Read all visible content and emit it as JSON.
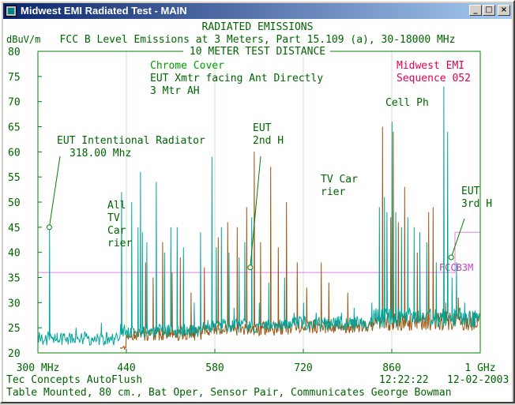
{
  "window": {
    "title": "Midwest EMI Radiated Test - MAIN",
    "buttons": {
      "minimize": "_",
      "maximize": "□",
      "close": "×"
    }
  },
  "header": {
    "line1": "RADIATED EMISSIONS",
    "line2": "FCC B Level Emissions at 3 Meters, Part 15.109 (a), 30-18000 MHz",
    "line3": "10 METER TEST DISTANCE",
    "unit": "dBuV/m"
  },
  "notes": {
    "green": [
      "Chrome Cover",
      "EUT Xmtr facing Ant Directly",
      "3 Mtr AH"
    ],
    "red": [
      "Midwest EMI",
      "Sequence 052"
    ]
  },
  "footer": {
    "left1": "Tec Concepts AutoFlush",
    "time": "12:22:22",
    "date": "12-02-2003",
    "left2": "Table Mounted, 80 cm., Bat Oper, Sensor Pair, Communicates George Bowman"
  },
  "colors": {
    "header": "#006400",
    "notes": "#00a000",
    "red_note": "#e00050",
    "green_trace": "#00a59a",
    "brown_trace": "#a0520c",
    "limit": "#e080e0",
    "axis": "#008000"
  },
  "chart_data": {
    "type": "line",
    "xlabel": "",
    "ylabel": "dBuV/m",
    "ylim": [
      20,
      80
    ],
    "xlim": [
      300,
      1000
    ],
    "x_ticks": [
      {
        "x": 300,
        "label": "300 MHz"
      },
      {
        "x": 440,
        "label": "440"
      },
      {
        "x": 580,
        "label": "580"
      },
      {
        "x": 720,
        "label": "720"
      },
      {
        "x": 860,
        "label": "860"
      },
      {
        "x": 1000,
        "label": "1 GHz"
      }
    ],
    "y_ticks": [
      20,
      25,
      30,
      35,
      40,
      45,
      50,
      55,
      60,
      65,
      70,
      75,
      80
    ],
    "limit_line": {
      "label": "FCCB3M",
      "points": [
        [
          300,
          36
        ],
        [
          960,
          36
        ],
        [
          960,
          44
        ],
        [
          1000,
          44
        ]
      ]
    },
    "series": [
      {
        "color": "green",
        "peaks": [
          [
            318,
            45
          ],
          [
            330,
            24
          ],
          [
            360,
            25
          ],
          [
            400,
            26
          ],
          [
            432,
            52
          ],
          [
            448,
            50
          ],
          [
            458,
            45
          ],
          [
            462,
            56
          ],
          [
            465,
            44
          ],
          [
            472,
            42
          ],
          [
            487,
            54
          ],
          [
            500,
            40
          ],
          [
            510,
            45
          ],
          [
            520,
            45
          ],
          [
            530,
            41
          ],
          [
            547,
            30
          ],
          [
            557,
            44
          ],
          [
            575,
            59
          ],
          [
            582,
            41
          ],
          [
            590,
            45
          ],
          [
            602,
            40
          ],
          [
            610,
            29
          ],
          [
            618,
            39
          ],
          [
            627,
            42
          ],
          [
            638,
            47
          ],
          [
            650,
            30
          ],
          [
            665,
            34
          ],
          [
            690,
            35
          ],
          [
            705,
            28
          ],
          [
            720,
            30
          ],
          [
            740,
            28
          ],
          [
            760,
            25
          ],
          [
            780,
            28
          ],
          [
            800,
            29
          ],
          [
            828,
            30
          ],
          [
            840,
            49
          ],
          [
            848,
            51
          ],
          [
            852,
            48
          ],
          [
            860,
            66
          ],
          [
            866,
            48
          ],
          [
            875,
            45
          ],
          [
            885,
            47
          ],
          [
            895,
            45
          ],
          [
            904,
            44
          ],
          [
            915,
            42
          ],
          [
            930,
            38
          ],
          [
            942,
            73
          ],
          [
            948,
            64
          ],
          [
            955,
            35
          ],
          [
            962,
            38
          ],
          [
            975,
            30
          ],
          [
            990,
            28
          ]
        ]
      },
      {
        "color": "brown",
        "peaks": [
          [
            470,
            38
          ],
          [
            482,
            35
          ],
          [
            497,
            42
          ],
          [
            512,
            36
          ],
          [
            525,
            39
          ],
          [
            542,
            32
          ],
          [
            563,
            37
          ],
          [
            585,
            43
          ],
          [
            600,
            46
          ],
          [
            615,
            45
          ],
          [
            630,
            49
          ],
          [
            642,
            60
          ],
          [
            652,
            42
          ],
          [
            668,
            57
          ],
          [
            680,
            41
          ],
          [
            693,
            50
          ],
          [
            710,
            38
          ],
          [
            725,
            33
          ],
          [
            748,
            38
          ],
          [
            760,
            34
          ],
          [
            790,
            32
          ],
          [
            845,
            65
          ],
          [
            858,
            47
          ],
          [
            862,
            64
          ],
          [
            870,
            46
          ],
          [
            880,
            53
          ],
          [
            900,
            40
          ],
          [
            918,
            48
          ],
          [
            925,
            49
          ],
          [
            945,
            30
          ],
          [
            965,
            31
          ],
          [
            985,
            27
          ]
        ]
      }
    ],
    "annotations": [
      {
        "text": [
          "EUT Intentional Radiator",
          "318.00 Mhz"
        ],
        "x": 318,
        "y": 45
      },
      {
        "text": [
          "All",
          "TV",
          "Car",
          "rier"
        ]
      },
      {
        "text": [
          "EUT",
          "2nd H"
        ],
        "x": 636,
        "y": 37
      },
      {
        "text": [
          "TV Car",
          "rier"
        ]
      },
      {
        "text": [
          "Cell Ph"
        ]
      },
      {
        "text": [
          "EUT",
          "3rd H"
        ],
        "x": 954,
        "y": 39
      }
    ]
  }
}
